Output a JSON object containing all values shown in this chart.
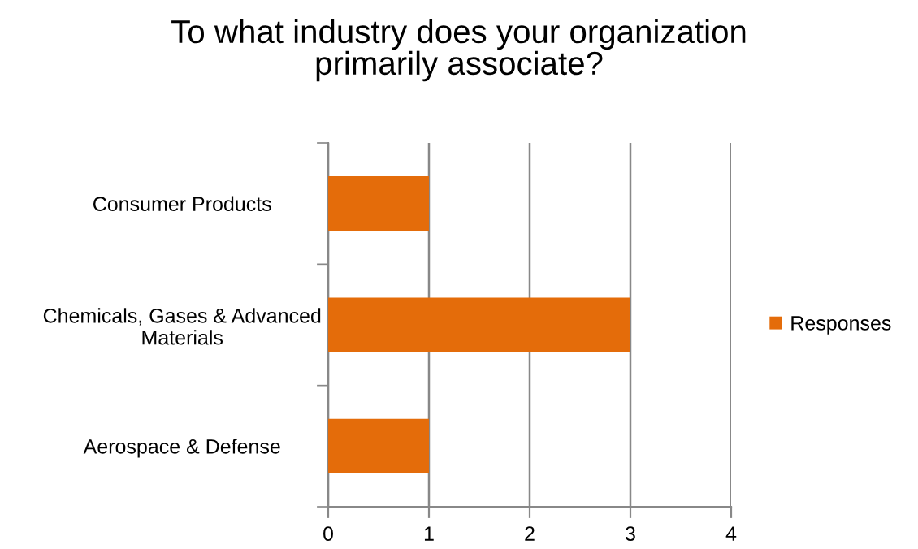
{
  "chart_data": {
    "type": "bar",
    "orientation": "horizontal",
    "title": "To what industry does your organization\nprimarily associate?",
    "categories": [
      "Consumer Products",
      "Chemicals, Gases & Advanced\nMaterials",
      "Aerospace & Defense"
    ],
    "series": [
      {
        "name": "Responses",
        "color": "#e46c0a",
        "values": [
          1,
          3,
          1
        ]
      }
    ],
    "xlim": [
      0,
      4
    ],
    "xticks": [
      0,
      1,
      2,
      3,
      4
    ],
    "grid": "x",
    "legend": "right"
  }
}
